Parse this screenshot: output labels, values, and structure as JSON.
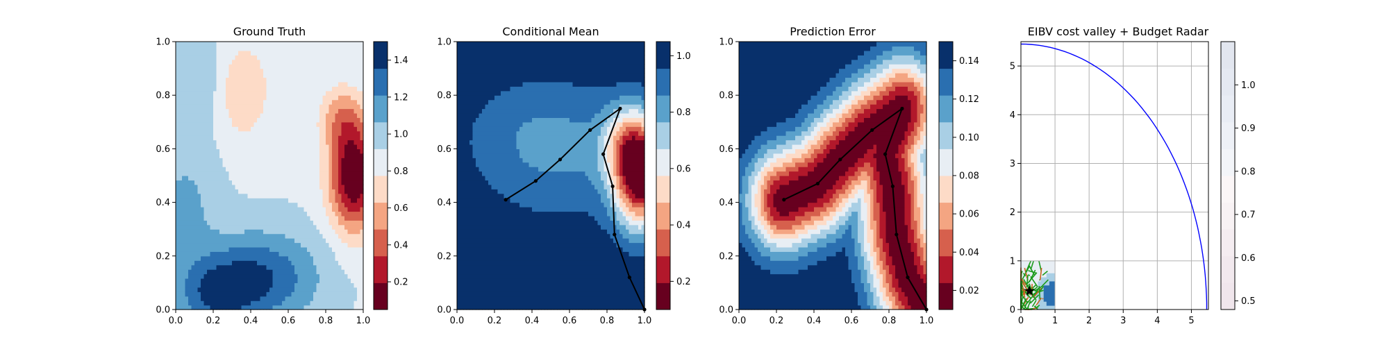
{
  "chart_data": [
    {
      "type": "heatmap",
      "title": "Ground Truth",
      "xlim": [
        0,
        1
      ],
      "ylim": [
        0,
        1
      ],
      "xticks": [
        "0.0",
        "0.2",
        "0.4",
        "0.6",
        "0.8",
        "1.0"
      ],
      "yticks": [
        "0.0",
        "0.2",
        "0.4",
        "0.6",
        "0.8",
        "1.0"
      ],
      "colormap": "RdBu",
      "colorbar": {
        "range": [
          0.05,
          1.5
        ],
        "ticks": [
          0.2,
          0.4,
          0.6,
          0.8,
          1.0,
          1.2,
          1.4
        ],
        "tick_labels": [
          "0.2",
          "0.4",
          "0.6",
          "0.8",
          "1.0",
          "1.2",
          "1.4"
        ]
      },
      "field": {
        "base": 0.9,
        "bumps": [
          {
            "x": 0.95,
            "y": 0.5,
            "sx": 0.09,
            "sy": 0.14,
            "a": -0.9
          },
          {
            "x": 0.88,
            "y": 0.72,
            "sx": 0.08,
            "sy": 0.08,
            "a": -0.3
          },
          {
            "x": 0.35,
            "y": 0.82,
            "sx": 0.1,
            "sy": 0.12,
            "a": -0.3
          },
          {
            "x": 0.45,
            "y": 0.12,
            "sx": 0.22,
            "sy": 0.12,
            "a": 0.45
          },
          {
            "x": 0.2,
            "y": 0.05,
            "sx": 0.15,
            "sy": 0.1,
            "a": 0.35
          },
          {
            "x": 0.05,
            "y": 0.4,
            "sx": 0.12,
            "sy": 0.15,
            "a": 0.2
          },
          {
            "x": 0.15,
            "y": 0.85,
            "sx": 0.12,
            "sy": 0.12,
            "a": 0.15
          }
        ]
      }
    },
    {
      "type": "heatmap",
      "title": "Conditional Mean",
      "xlim": [
        0,
        1
      ],
      "ylim": [
        0,
        1
      ],
      "xticks": [
        "0.0",
        "0.2",
        "0.4",
        "0.6",
        "0.8",
        "1.0"
      ],
      "yticks": [
        "0.0",
        "0.2",
        "0.4",
        "0.6",
        "0.8",
        "1.0"
      ],
      "colormap": "RdBu",
      "colorbar": {
        "range": [
          0.1,
          1.05
        ],
        "ticks": [
          0.2,
          0.4,
          0.6,
          0.8,
          1.0
        ],
        "tick_labels": [
          "0.2",
          "0.4",
          "0.6",
          "0.8",
          "1.0"
        ]
      },
      "field": {
        "base": 1.05,
        "bumps": [
          {
            "x": 0.98,
            "y": 0.5,
            "sx": 0.1,
            "sy": 0.14,
            "a": -0.9
          },
          {
            "x": 0.9,
            "y": 0.62,
            "sx": 0.09,
            "sy": 0.1,
            "a": -0.3
          },
          {
            "x": 0.55,
            "y": 0.55,
            "sx": 0.35,
            "sy": 0.18,
            "a": -0.15
          },
          {
            "x": 0.45,
            "y": 0.7,
            "sx": 0.3,
            "sy": 0.15,
            "a": -0.1
          }
        ]
      },
      "path": {
        "x": [
          0.26,
          0.42,
          0.55,
          0.71,
          0.87,
          0.78,
          0.83,
          0.84,
          0.92,
          1.0
        ],
        "y": [
          0.41,
          0.48,
          0.56,
          0.67,
          0.75,
          0.58,
          0.46,
          0.28,
          0.12,
          0.0
        ]
      }
    },
    {
      "type": "heatmap",
      "title": "Prediction Error",
      "xlim": [
        0,
        1
      ],
      "ylim": [
        0,
        1
      ],
      "xticks": [
        "0.0",
        "0.2",
        "0.4",
        "0.6",
        "0.8",
        "1.0"
      ],
      "yticks": [
        "0.0",
        "0.2",
        "0.4",
        "0.6",
        "0.8",
        "1.0"
      ],
      "colormap": "RdBu",
      "colorbar": {
        "range": [
          0.01,
          0.15
        ],
        "ticks": [
          0.02,
          0.04,
          0.06,
          0.08,
          0.1,
          0.12,
          0.14
        ],
        "tick_labels": [
          "0.02",
          "0.04",
          "0.06",
          "0.08",
          "0.10",
          "0.12",
          "0.14"
        ]
      },
      "field": {
        "mode": "distance",
        "near": 0.012,
        "far": 0.15,
        "scale": 0.13
      },
      "path": {
        "x": [
          0.24,
          0.42,
          0.54,
          0.71,
          0.87,
          0.78,
          0.82,
          0.84,
          0.9,
          1.0
        ],
        "y": [
          0.41,
          0.47,
          0.56,
          0.67,
          0.75,
          0.58,
          0.46,
          0.28,
          0.12,
          0.0
        ]
      }
    },
    {
      "type": "line",
      "title": "EIBV cost valley + Budget Radar",
      "xlim": [
        0,
        5.5
      ],
      "ylim": [
        0,
        5.5
      ],
      "xticks": [
        "0",
        "1",
        "2",
        "3",
        "4",
        "5"
      ],
      "yticks": [
        "0",
        "1",
        "2",
        "3",
        "4",
        "5"
      ],
      "grid": true,
      "colorbar": {
        "range": [
          0.48,
          1.1
        ],
        "ticks": [
          0.5,
          0.6,
          0.7,
          0.8,
          0.9,
          1.0
        ],
        "tick_labels": [
          "0.5",
          "0.6",
          "0.7",
          "0.8",
          "0.9",
          "1.0"
        ]
      },
      "budget_arc": {
        "radius": 5.45,
        "color": "#0000ff"
      },
      "cost_valley_extent": {
        "x": [
          0,
          1
        ],
        "y": [
          0,
          1
        ]
      },
      "star": {
        "x": 0.25,
        "y": 0.38
      },
      "tree_colors": [
        "#1a9a1a",
        "#c8641e"
      ]
    }
  ]
}
